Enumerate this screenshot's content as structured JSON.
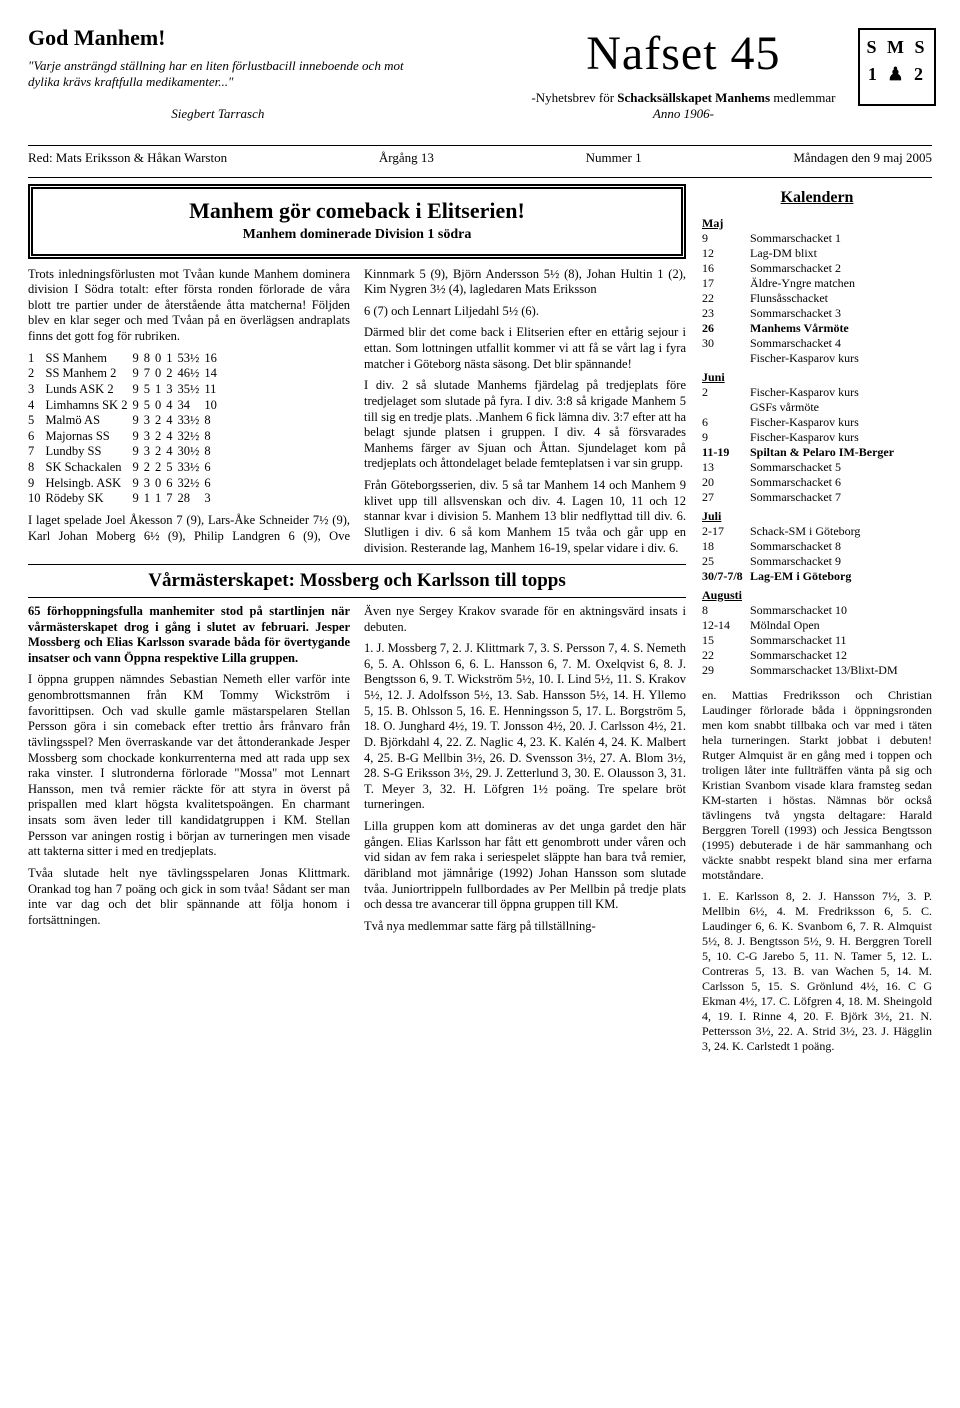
{
  "header": {
    "godManhem": "God Manhem!",
    "quote": "\"Varje ansträngd ställning har en liten förlustbacill inneboende och mot dylika krävs kraftfulla medikamenter...\"",
    "author": "Siegbert Tarrasch",
    "nafset": "Nafset 45",
    "subtitle_pre": "-Nyhetsbrev för ",
    "subtitle_bold": "Schacksällskapet Manhems",
    "subtitle_post": " medlemmar",
    "anno": "Anno 1906-",
    "logoLetters": "S M S",
    "logoNums": "1 ♟ 2"
  },
  "redline": {
    "red": "Red: Mats Eriksson & Håkan Warston",
    "arg": "Årgång 13",
    "num": "Nummer 1",
    "date": "Måndagen den 9 maj 2005"
  },
  "article1": {
    "h1": "Manhem gör comeback i Elitserien!",
    "h2": "Manhem dominerade Division 1 södra",
    "p1": "Trots inledningsförlusten mot Tvåan kunde Manhem dominera division I Södra totalt: efter första ronden förlorade de våra blott tre partier under de återstående åtta matcherna! Följden blev en klar seger och med Tvåan på en överlägsen andraplats finns det gott fog för rubriken.",
    "standings": [
      [
        "1",
        "SS Manhem",
        "9",
        "8",
        "0",
        "1",
        "53½",
        "16"
      ],
      [
        "2",
        "SS Manhem 2",
        "9",
        "7",
        "0",
        "2",
        "46½",
        "14"
      ],
      [
        "3",
        "Lunds ASK 2",
        "9",
        "5",
        "1",
        "3",
        "35½",
        "11"
      ],
      [
        "4",
        "Limhamns SK 2",
        "9",
        "5",
        "0",
        "4",
        "34",
        "10"
      ],
      [
        "5",
        "Malmö AS",
        "9",
        "3",
        "2",
        "4",
        "33½",
        "8"
      ],
      [
        "6",
        "Majornas SS",
        "9",
        "3",
        "2",
        "4",
        "32½",
        "8"
      ],
      [
        "7",
        "Lundby SS",
        "9",
        "3",
        "2",
        "4",
        "30½",
        "8"
      ],
      [
        "8",
        "SK Schackalen",
        "9",
        "2",
        "2",
        "5",
        "33½",
        "6"
      ],
      [
        "9",
        "Helsingb. ASK",
        "9",
        "3",
        "0",
        "6",
        "32½",
        "6"
      ],
      [
        "10",
        "Rödeby SK",
        "9",
        "1",
        "1",
        "7",
        "28",
        "3"
      ]
    ],
    "p2": "I laget spelade Joel Åkesson 7 (9), Lars-Åke Schneider 7½ (9), Karl Johan Moberg 6½ (9), Philip Landgren 6 (9), Ove Kinnmark 5 (9), Björn Andersson 5½ (8), Johan Hultin 1 (2), Kim Nygren 3½ (4), lagledaren Mats Eriksson",
    "p3": "6 (7) och Lennart Liljedahl 5½ (6).",
    "p4": "Därmed blir det come back i Elitserien efter en ettårig sejour i ettan. Som lottningen utfallit kommer vi att få se vårt lag i fyra matcher i Göteborg nästa säsong. Det blir spännande!",
    "p5": "I div. 2 så slutade Manhems fjärdelag på tredjeplats före tredjelaget som slutade på fyra. I div. 3:8 så krigade Manhem 5 till sig en tredje plats. .Manhem 6 fick lämna div. 3:7 efter att ha belagt sjunde platsen i gruppen. I div. 4 så försvarades Manhems färger av Sjuan och Åttan. Sjundelaget kom på tredjeplats och åttondelaget belade femteplatsen i var sin grupp.",
    "p6": "Från Göteborgsserien, div. 5 så tar Manhem 14 och Manhem 9 klivet upp till allsvenskan och div. 4. Lagen 10, 11 och 12 stannar kvar i division 5. Manhem 13 blir nedflyttad till div. 6. Slutligen i div. 6 så kom Manhem 15 tvåa och går upp en division. Resterande lag, Manhem 16-19, spelar vidare i div. 6."
  },
  "article2": {
    "h": "Vårmästerskapet: Mossberg och Karlsson till topps",
    "text": "65 förhoppningsfulla manhemiter stod på startlinjen när vårmästerskapet drog i gång i slutet av februari. Jesper Mossberg och Elias Karlsson svarade båda för övertygande insatser och vann Öppna respektive Lilla gruppen.\n\nI öppna gruppen nämndes Sebastian Nemeth eller varför inte genombrottsmannen från KM Tommy Wickström i favorittipsen. Och vad skulle gamle mästarspelaren Stellan Persson göra i sin comeback efter trettio års frånvaro från tävlingsspel? Men överraskande var det åttonderankade Jesper Mossberg som chockade konkurrenterna med att rada upp sex raka vinster. I slutronderna förlorade \"Mossa\" mot Lennart Hansson, men två remier räckte för att styra in överst på prispallen med klart högsta kvalitetspoängen. En charmant insats som även leder till kandidatgruppen i KM. Stellan Persson var aningen rostig i början av turneringen men visade att takterna sitter i med en tredjeplats.\n\nTvåa slutade helt nye tävlingsspelaren Jonas Klittmark. Orankad tog han 7 poäng och gick in som tvåa! Sådant ser man inte var dag och det blir spännande att följa honom i fortsättningen.\n\nÄven nye Sergey Krakov svarade för en aktningsvärd insats i debuten.\n\n1. J. Mossberg 7, 2. J. Klittmark 7, 3. S. Persson 7, 4. S. Nemeth 6, 5. A. Ohlsson 6, 6. L. Hansson 6, 7. M. Oxelqvist 6, 8. J. Bengtsson 6, 9. T. Wickström 5½, 10. I. Lind 5½, 11. S. Krakov 5½, 12. J. Adolfsson 5½, 13. Sab. Hansson 5½, 14. H. Yllemo 5, 15. B. Ohlsson 5, 16. E. Henningsson 5, 17. L. Borgström 5, 18. O. Junghard 4½, 19. T. Jonsson 4½, 20. J. Carlsson 4½, 21. D. Björkdahl 4, 22. Z. Naglic 4, 23. K. Kalén 4, 24. K. Malbert 4, 25. B-G Mellbin 3½, 26. D. Svensson 3½, 27. A. Blom 3½, 28. S-G Eriksson 3½, 29. J. Zetterlund 3, 30. E. Olausson 3, 31. T. Meyer 3, 32. H. Löfgren 1½ poäng. Tre spelare bröt turneringen.\n\nLilla gruppen kom att domineras av det unga gardet den här gången. Elias Karlsson har fått ett genombrott under våren och vid sidan av fem raka i seriespelet släppte han bara två remier, däribland mot jämnårige (1992) Johan Hansson som slutade tvåa. Juniortrippeln fullbordades av Per Mellbin på tredje plats och dessa tre avancerar till öppna gruppen till KM.\n\nTvå nya medlemmar satte färg på tillställning-"
  },
  "sidebar": {
    "title": "Kalendern",
    "months": [
      {
        "name": "Maj",
        "items": [
          [
            "9",
            "Sommarschacket 1"
          ],
          [
            "12",
            "Lag-DM blixt"
          ],
          [
            "16",
            "Sommarschacket 2"
          ],
          [
            "17",
            "Äldre-Yngre matchen"
          ],
          [
            "22",
            "Flunsåsschacket"
          ],
          [
            "23",
            "Sommarschacket 3"
          ],
          [
            "26",
            "Manhems Vårmöte",
            "bold"
          ],
          [
            "30",
            "Sommarschacket 4"
          ],
          [
            "",
            "Fischer-Kasparov kurs"
          ]
        ]
      },
      {
        "name": "Juni",
        "items": [
          [
            "2",
            "Fischer-Kasparov kurs"
          ],
          [
            "",
            "GSFs vårmöte"
          ],
          [
            "6",
            "Fischer-Kasparov kurs"
          ],
          [
            "9",
            "Fischer-Kasparov kurs"
          ],
          [
            "11-19",
            "Spiltan & Pelaro IM-Berger",
            "bold"
          ],
          [
            "13",
            "Sommarschacket 5"
          ],
          [
            "20",
            "Sommarschacket 6"
          ],
          [
            "27",
            "Sommarschacket 7"
          ]
        ]
      },
      {
        "name": "Juli",
        "items": [
          [
            "2-17",
            "Schack-SM i Göteborg"
          ],
          [
            "18",
            "Sommarschacket 8"
          ],
          [
            "25",
            "Sommarschacket 9"
          ],
          [
            "30/7-7/8",
            "Lag-EM i Göteborg",
            "bold"
          ]
        ]
      },
      {
        "name": "Augusti",
        "items": [
          [
            "8",
            "Sommarschacket 10"
          ],
          [
            "12-14",
            "Mölndal Open"
          ],
          [
            "15",
            "Sommarschacket 11"
          ],
          [
            "22",
            "Sommarschacket 12"
          ],
          [
            "29",
            "Sommarschacket 13/Blixt-DM"
          ]
        ]
      }
    ],
    "tail1": "en. Mattias Fredriksson och Christian Laudinger förlorade båda i öppningsronden men kom snabbt tillbaka och var med i täten hela turneringen. Starkt jobbat i debuten! Rutger Almquist är en gång med i toppen och troligen låter inte fullträffen vänta på sig och Kristian Svanbom visade klara framsteg sedan KM-starten i höstas. Nämnas bör också tävlingens två yngsta deltagare: Harald Berggren Torell (1993) och Jessica Bengtsson (1995) debuterade i de här sammanhang och väckte snabbt respekt bland sina mer erfarna motståndare.",
    "tail2": "1. E. Karlsson 8, 2. J. Hansson 7½, 3. P. Mellbin 6½, 4. M. Fredriksson 6, 5. C. Laudinger 6, 6. K. Svanbom 6, 7. R. Almquist 5½, 8. J. Bengtsson 5½, 9. H. Berggren Torell 5, 10. C-G Jarebo 5, 11. N. Tamer 5, 12. L. Contreras 5, 13. B. van Wachen 5, 14. M. Carlsson 5, 15. S. Grönlund 4½, 16. C G Ekman 4½, 17. C. Löfgren 4, 18. M. Sheingold 4, 19. I. Rinne 4, 20. F. Björk 3½, 21. N. Pettersson 3½, 22. A. Strid 3½, 23. J. Hägglin 3, 24. K. Carlstedt 1 poäng."
  }
}
